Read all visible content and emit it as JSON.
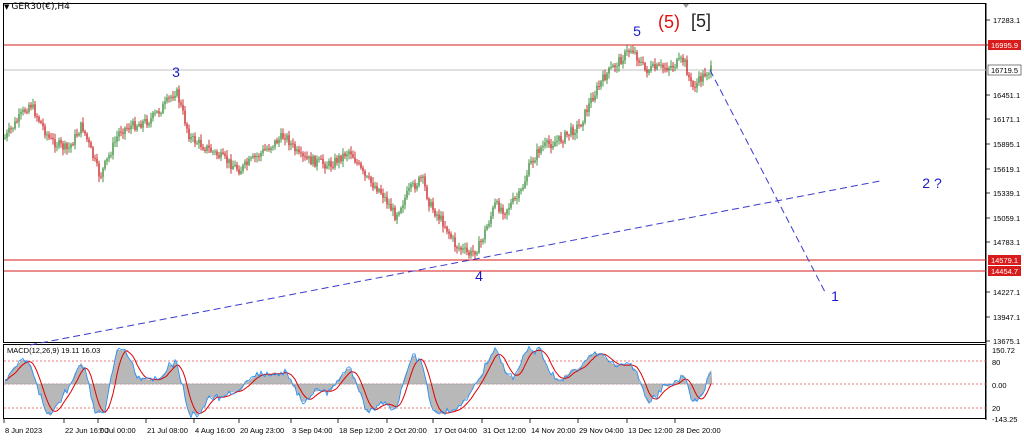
{
  "symbol": {
    "marker_icon": "triangle-down-icon",
    "title": "GER30(€),H4"
  },
  "colors": {
    "bull": "#1b7a1b",
    "bear": "#c00000",
    "level_line": "#d81b1b",
    "wave_label": "#1a1acc",
    "projection": "#3a3ad0",
    "price_line": "#c0c0c0",
    "macd_fill": "#b8b8b8",
    "macd_signal": "#e00000",
    "macd_line": "#1e90ff"
  },
  "price_axis": {
    "ticks": [
      "17283.1",
      "17007.5",
      "16451.1",
      "16171.1",
      "15895.1",
      "15619.1",
      "15339.1",
      "15059.1",
      "14783.1",
      "14227.1",
      "13947.1",
      "13675.1"
    ],
    "tags": [
      {
        "label": "16995.9",
        "kind": "level"
      },
      {
        "label": "16719.5",
        "kind": "current"
      },
      {
        "label": "14579.1",
        "kind": "level"
      },
      {
        "label": "14454.7",
        "kind": "level"
      }
    ]
  },
  "time_axis": [
    "8 Jun 2023",
    "22 Jun 16:00",
    "7 Jul 00:00",
    "21 Jul 08:00",
    "4 Aug 16:00",
    "20 Aug 23:00",
    "3 Sep 04:00",
    "18 Sep 12:00",
    "2 Oct 20:00",
    "17 Oct 04:00",
    "31 Oct 12:00",
    "14 Nov 20:00",
    "29 Nov 04:00",
    "13 Dec 12:00",
    "28 Dec 20:00"
  ],
  "wave_labels": {
    "w3": "3",
    "w4": "4",
    "w5": "5",
    "w5r": "(5)",
    "w5b": "[5]",
    "p1": "1",
    "p2": "2 ?"
  },
  "macd": {
    "label": "MACD(12,26,9) 19.11 16.03",
    "ticks": [
      "150.72",
      "80",
      "0.00",
      "20",
      "-143.25"
    ]
  }
}
